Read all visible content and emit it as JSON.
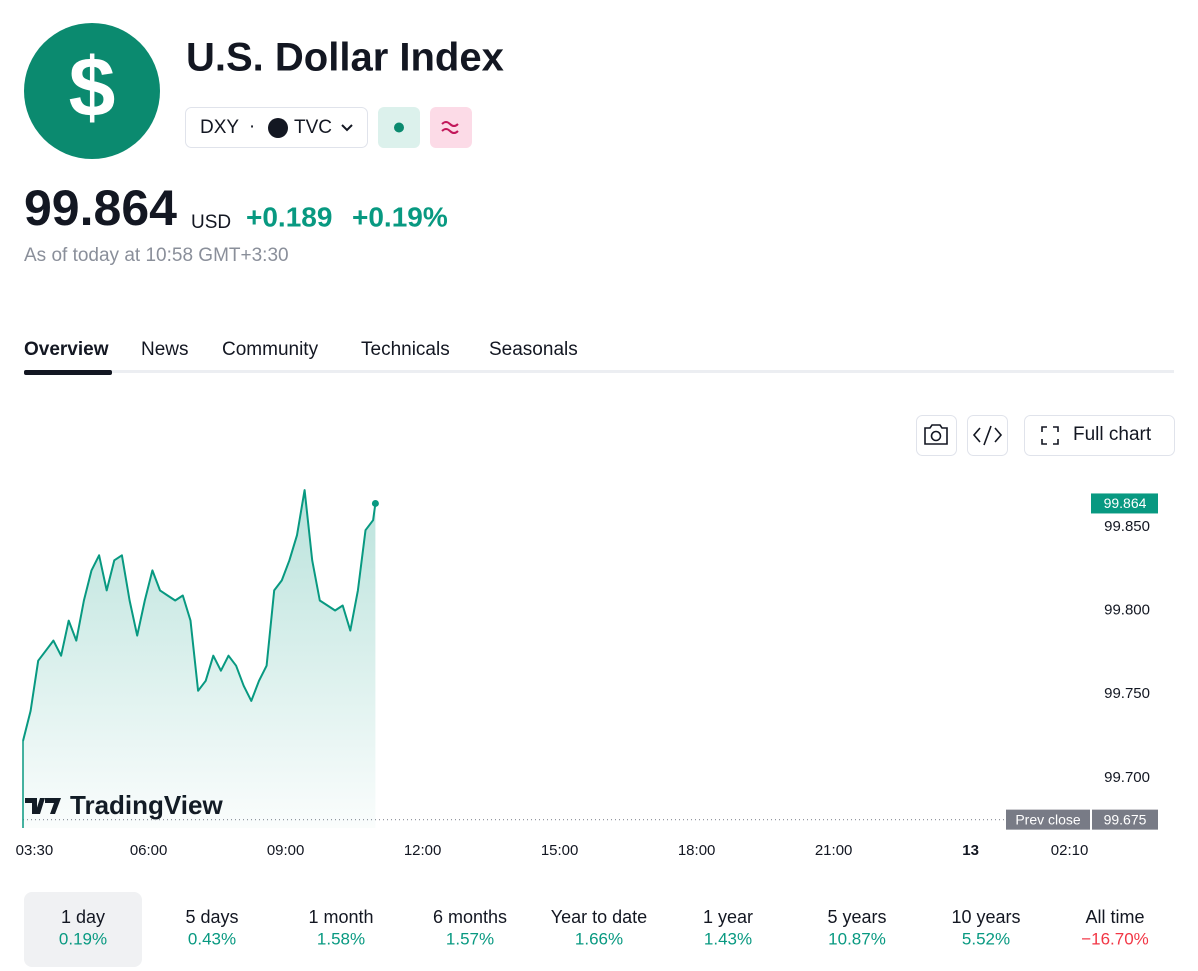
{
  "header": {
    "logo": "$",
    "title": "U.S. Dollar Index",
    "symbol": "DXY",
    "separator": "·",
    "exchange": "TVC",
    "price": 99.864,
    "currency": "USD",
    "change": "+0.189",
    "change_percent": "+0.19%",
    "as_of": "As of today at 10:58 GMT+3:30"
  },
  "tabs": [
    "Overview",
    "News",
    "Community",
    "Technicals",
    "Seasonals"
  ],
  "toolbar": {
    "full_chart": "Full chart"
  },
  "chart_data": {
    "type": "area",
    "color": "#089981",
    "watermark": "TradingView",
    "x": [
      "03:15",
      "03:25",
      "03:35",
      "03:45",
      "03:55",
      "04:05",
      "04:15",
      "04:25",
      "04:35",
      "04:45",
      "04:55",
      "05:05",
      "05:15",
      "05:25",
      "05:35",
      "05:45",
      "05:55",
      "06:05",
      "06:15",
      "06:25",
      "06:35",
      "06:45",
      "06:55",
      "07:05",
      "07:15",
      "07:25",
      "07:35",
      "07:45",
      "07:55",
      "08:05",
      "08:15",
      "08:25",
      "08:35",
      "08:45",
      "08:55",
      "09:05",
      "09:15",
      "09:25",
      "09:35",
      "09:45",
      "09:55",
      "10:05",
      "10:15",
      "10:25",
      "10:35",
      "10:45",
      "10:55",
      "10:58"
    ],
    "values": [
      99.722,
      99.74,
      99.77,
      99.776,
      99.782,
      99.773,
      99.794,
      99.782,
      99.806,
      99.824,
      99.833,
      99.812,
      99.83,
      99.833,
      99.806,
      99.785,
      99.806,
      99.824,
      99.812,
      99.809,
      99.806,
      99.809,
      99.794,
      99.752,
      99.758,
      99.773,
      99.764,
      99.773,
      99.767,
      99.755,
      99.746,
      99.758,
      99.767,
      99.812,
      99.818,
      99.83,
      99.845,
      99.872,
      99.83,
      99.806,
      99.803,
      99.8,
      99.803,
      99.788,
      99.812,
      99.848,
      99.854,
      99.864
    ],
    "xlim": [
      "03:15",
      "02:25"
    ],
    "xticks": [
      "03:30",
      "06:00",
      "09:00",
      "12:00",
      "15:00",
      "18:00",
      "21:00",
      {
        "value": "00:00",
        "label": "13"
      },
      "02:10"
    ],
    "ylim": [
      99.67,
      99.884
    ],
    "yticks": [
      {
        "value": 99.7,
        "label": "99.700"
      },
      {
        "value": 99.75,
        "label": "99.750"
      },
      {
        "value": 99.8,
        "label": "99.800"
      },
      {
        "value": 99.85,
        "label": "99.850"
      }
    ],
    "prev_close_label": "Prev close",
    "prev_close": 99.675
  },
  "periods": [
    {
      "label": "1 day",
      "change": "0.19%"
    },
    {
      "label": "5 days",
      "change": "0.43%"
    },
    {
      "label": "1 month",
      "change": "1.58%"
    },
    {
      "label": "6 months",
      "change": "1.57%"
    },
    {
      "label": "Year to date",
      "change": "1.66%"
    },
    {
      "label": "1 year",
      "change": "1.43%"
    },
    {
      "label": "5 years",
      "change": "10.87%"
    },
    {
      "label": "10 years",
      "change": "5.52%"
    },
    {
      "label": "All time",
      "change": "−16.70%"
    }
  ]
}
